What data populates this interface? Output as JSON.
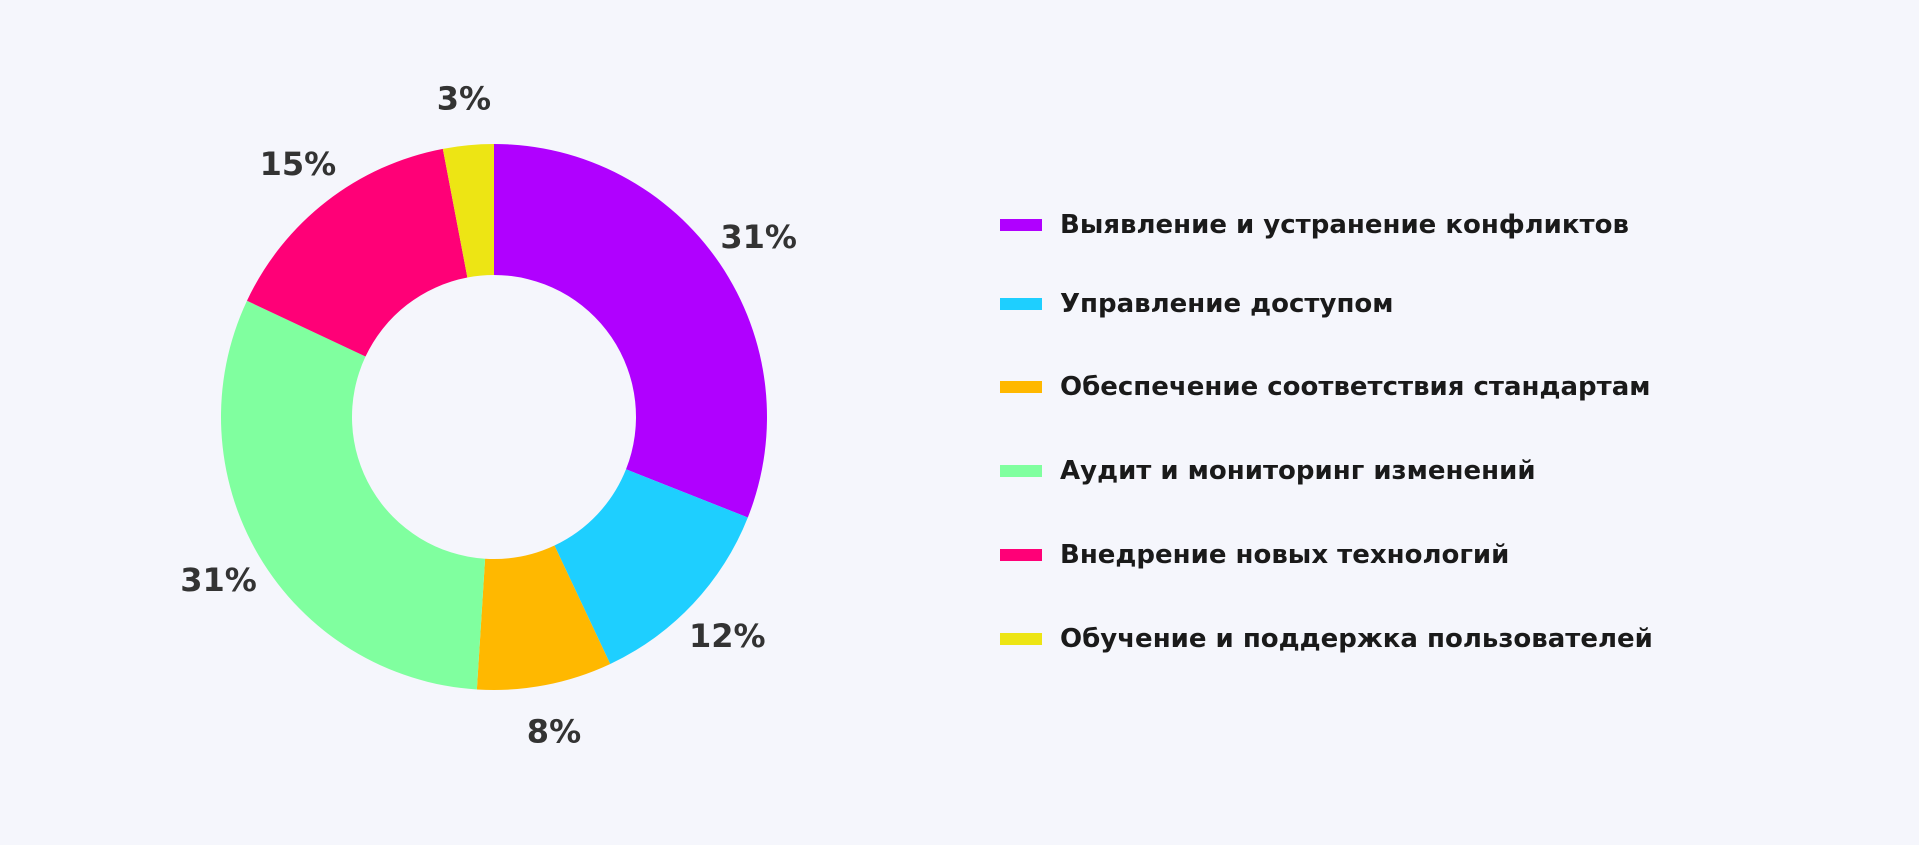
{
  "chart_data": {
    "type": "pie",
    "variant": "donut",
    "title": "",
    "start_angle": "12 o'clock, clockwise",
    "slices": [
      {
        "label": "Выявление и устранение конфликтов",
        "value": 31,
        "value_label": "31%",
        "color": "#b000ff"
      },
      {
        "label": "Управление доступом",
        "value": 12,
        "value_label": "12%",
        "color": "#1ecfff"
      },
      {
        "label": "Обеспечение соответствия стандартам",
        "value": 8,
        "value_label": "8%",
        "color": "#ffb800"
      },
      {
        "label": "Аудит и мониторинг изменений",
        "value": 31,
        "value_label": "31%",
        "color": "#80ff9f"
      },
      {
        "label": "Внедрение новых технологий",
        "value": 15,
        "value_label": "15%",
        "color": "#ff0077"
      },
      {
        "label": "Обучение и поддержка пользователей",
        "value": 3,
        "value_label": "3%",
        "color": "#ede514"
      }
    ],
    "legend_position": "right"
  }
}
